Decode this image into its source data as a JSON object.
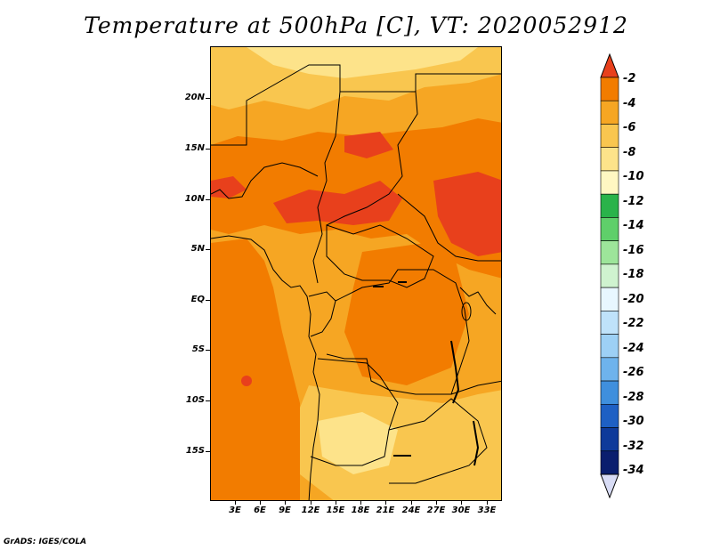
{
  "title": "Temperature at 500hPa [C], VT: 2020052912",
  "footer": "GrADS: IGES/COLA",
  "lat_labels": [
    "20N",
    "15N",
    "10N",
    "5N",
    "EQ",
    "5S",
    "10S",
    "15S"
  ],
  "lon_labels": [
    "3E",
    "6E",
    "9E",
    "12E",
    "15E",
    "18E",
    "21E",
    "24E",
    "27E",
    "30E",
    "33E"
  ],
  "colorbar": {
    "levels": [
      "-2",
      "-4",
      "-6",
      "-8",
      "-10",
      "-12",
      "-14",
      "-16",
      "-18",
      "-20",
      "-22",
      "-24",
      "-26",
      "-28",
      "-30",
      "-32",
      "-34"
    ],
    "colors": [
      "#e8401c",
      "#f27c00",
      "#f6a623",
      "#f9c64f",
      "#fde38a",
      "#fff7c2",
      "#2ab34a",
      "#5fcf6a",
      "#9de59a",
      "#cff3cf",
      "#e8f7ff",
      "#bfe2fa",
      "#9dd0f5",
      "#6eb3ec",
      "#3f8fdd",
      "#1e60c4",
      "#0e3a9a",
      "#0a1e6e",
      "#d8dcf5"
    ]
  },
  "map_colors": {
    "base": "#f6a623",
    "warm": "#f27c00",
    "warmest": "#e8401c",
    "cool": "#f9c64f",
    "coolest": "#fde38a"
  }
}
